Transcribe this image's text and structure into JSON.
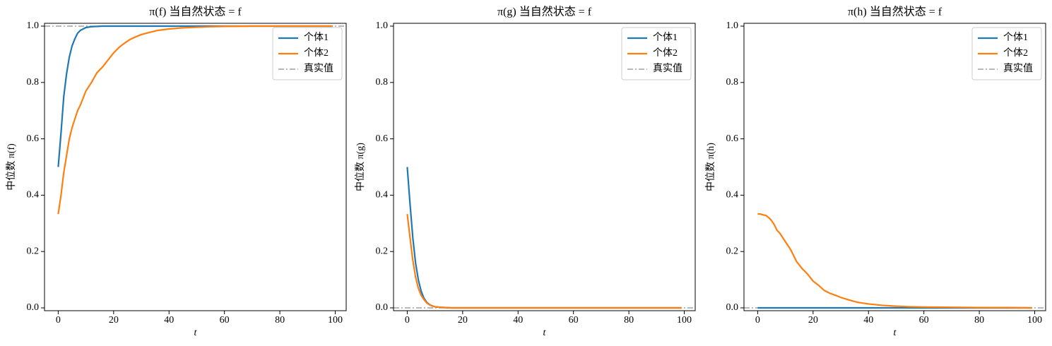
{
  "chart_data": [
    {
      "type": "line",
      "title": "π(f) 当自然状态 = f",
      "xlabel": "t",
      "ylabel": "中位数 π(f)",
      "x": [
        0,
        1,
        2,
        3,
        4,
        5,
        6,
        7,
        8,
        9,
        10,
        12,
        14,
        16,
        18,
        20,
        22,
        24,
        26,
        28,
        30,
        33,
        36,
        40,
        45,
        50,
        55,
        60,
        70,
        80,
        90,
        99
      ],
      "series": [
        {
          "name": "个体1",
          "color": "#1f77b4",
          "values": [
            0.5,
            0.62,
            0.75,
            0.83,
            0.89,
            0.93,
            0.955,
            0.975,
            0.985,
            0.99,
            0.995,
            0.998,
            0.999,
            1,
            1,
            1,
            1,
            1,
            1,
            1,
            1,
            1,
            1,
            1,
            1,
            1,
            1,
            1,
            1,
            1,
            1,
            1
          ]
        },
        {
          "name": "个体2",
          "color": "#ff7f0e",
          "values": [
            0.333,
            0.4,
            0.48,
            0.54,
            0.6,
            0.64,
            0.67,
            0.7,
            0.72,
            0.745,
            0.77,
            0.8,
            0.835,
            0.855,
            0.88,
            0.905,
            0.925,
            0.94,
            0.953,
            0.962,
            0.97,
            0.978,
            0.985,
            0.99,
            0.994,
            0.996,
            0.998,
            0.999,
            1,
            1,
            1,
            1
          ]
        }
      ],
      "reference": {
        "name": "真实值",
        "value": 1,
        "color": "#a0a0a0",
        "style": "dashdot"
      },
      "xlim": [
        -4.95,
        103.95
      ],
      "ylim": [
        -0.01,
        1.01
      ],
      "xticks": [
        0,
        20,
        40,
        60,
        80,
        100
      ],
      "yticks": [
        {
          "value": 0,
          "label": "0.0"
        },
        0.2,
        0.4,
        0.6,
        0.8,
        {
          "value": 1,
          "label": "1.0"
        }
      ],
      "legend": "upper right"
    },
    {
      "type": "line",
      "title": "π(g) 当自然状态 = f",
      "xlabel": "t",
      "ylabel": "中位数 π(g)",
      "x": [
        0,
        1,
        2,
        3,
        4,
        5,
        6,
        7,
        8,
        9,
        10,
        12,
        14,
        16,
        18,
        20,
        22,
        24,
        26,
        28,
        30,
        33,
        36,
        40,
        45,
        50,
        55,
        60,
        70,
        80,
        90,
        99
      ],
      "series": [
        {
          "name": "个体1",
          "color": "#1f77b4",
          "values": [
            0.5,
            0.37,
            0.25,
            0.16,
            0.1,
            0.06,
            0.035,
            0.02,
            0.012,
            0.007,
            0.004,
            0.002,
            0.001,
            0,
            0,
            0,
            0,
            0,
            0,
            0,
            0,
            0,
            0,
            0,
            0,
            0,
            0,
            0,
            0,
            0,
            0,
            0
          ]
        },
        {
          "name": "个体2",
          "color": "#ff7f0e",
          "values": [
            0.333,
            0.25,
            0.17,
            0.11,
            0.07,
            0.045,
            0.03,
            0.018,
            0.011,
            0.007,
            0.004,
            0.002,
            0.001,
            0,
            0,
            0,
            0,
            0,
            0,
            0,
            0,
            0,
            0,
            0,
            0,
            0,
            0,
            0,
            0,
            0,
            0,
            0
          ]
        }
      ],
      "reference": {
        "name": "真实值",
        "value": 0,
        "color": "#a0a0a0",
        "style": "dashdot"
      },
      "xlim": [
        -4.95,
        103.95
      ],
      "ylim": [
        -0.01,
        1.01
      ],
      "xticks": [
        0,
        20,
        40,
        60,
        80,
        100
      ],
      "yticks": [
        {
          "value": 0,
          "label": "0.0"
        },
        0.2,
        0.4,
        0.6,
        0.8,
        {
          "value": 1,
          "label": "1.0"
        }
      ],
      "legend": "upper right"
    },
    {
      "type": "line",
      "title": "π(h) 当自然状态 = f",
      "xlabel": "t",
      "ylabel": "中位数 π(h)",
      "x": [
        0,
        1,
        2,
        3,
        4,
        5,
        6,
        7,
        8,
        9,
        10,
        12,
        14,
        16,
        18,
        20,
        22,
        24,
        26,
        28,
        30,
        33,
        36,
        40,
        45,
        50,
        55,
        60,
        70,
        80,
        90,
        99
      ],
      "series": [
        {
          "name": "个体1",
          "color": "#1f77b4",
          "values": [
            0,
            0,
            0,
            0,
            0,
            0,
            0,
            0,
            0,
            0,
            0,
            0,
            0,
            0,
            0,
            0,
            0,
            0,
            0,
            0,
            0,
            0,
            0,
            0,
            0,
            0,
            0,
            0,
            0,
            0,
            0,
            0
          ]
        },
        {
          "name": "个体2",
          "color": "#ff7f0e",
          "values": [
            0.333,
            0.333,
            0.33,
            0.328,
            0.32,
            0.31,
            0.295,
            0.275,
            0.265,
            0.25,
            0.235,
            0.205,
            0.165,
            0.14,
            0.12,
            0.095,
            0.08,
            0.062,
            0.052,
            0.045,
            0.037,
            0.028,
            0.02,
            0.014,
            0.009,
            0.006,
            0.004,
            0.003,
            0.002,
            0.001,
            0.001,
            0
          ]
        }
      ],
      "reference": {
        "name": "真实值",
        "value": 0,
        "color": "#a0a0a0",
        "style": "dashdot"
      },
      "xlim": [
        -4.95,
        103.95
      ],
      "ylim": [
        -0.01,
        1.01
      ],
      "xticks": [
        0,
        20,
        40,
        60,
        80,
        100
      ],
      "yticks": [
        {
          "value": 0,
          "label": "0.0"
        },
        0.2,
        0.4,
        0.6,
        0.8,
        {
          "value": 1,
          "label": "1.0"
        }
      ],
      "legend": "upper right"
    }
  ]
}
